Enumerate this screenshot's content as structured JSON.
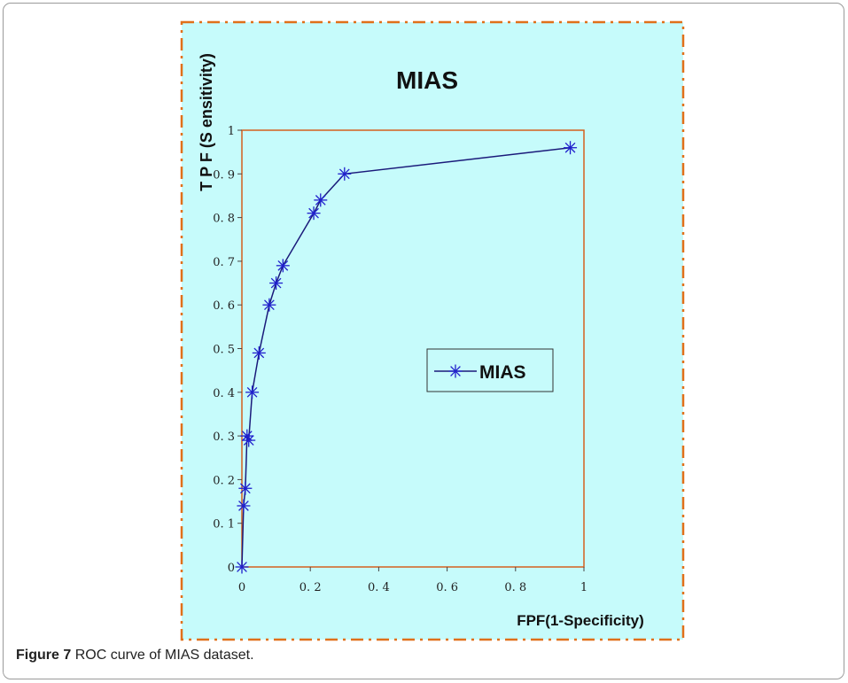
{
  "figure": {
    "label": "Figure 7",
    "caption": "ROC curve of MIAS dataset."
  },
  "colors": {
    "panel_background": "#c6fbfb",
    "panel_border": "#e0701a",
    "axes_frame": "#d3601e",
    "series_line": "#1a1a7a",
    "marker": "#2020cc"
  },
  "chart_data": {
    "type": "line",
    "title": "MIAS",
    "xlabel": "FPF(1-Specificity)",
    "ylabel": "T P F (S ensitivity)",
    "xlim": [
      0,
      1
    ],
    "ylim": [
      0,
      1
    ],
    "x_ticks": [
      0,
      0.2,
      0.4,
      0.6,
      0.8,
      1
    ],
    "x_tick_labels": [
      "0",
      "0. 2",
      "0. 4",
      "0. 6",
      "0. 8",
      "1"
    ],
    "y_ticks": [
      0,
      0.1,
      0.2,
      0.3,
      0.4,
      0.5,
      0.6,
      0.7,
      0.8,
      0.9,
      1
    ],
    "y_tick_labels": [
      "0",
      "0. 1",
      "0. 2",
      "0. 3",
      "0. 4",
      "0. 5",
      "0. 6",
      "0. 7",
      "0. 8",
      "0. 9",
      "1"
    ],
    "grid": false,
    "legend_position": "right-middle",
    "marker": "asterisk",
    "series": [
      {
        "name": "MIAS",
        "x": [
          0,
          0.005,
          0.01,
          0.015,
          0.02,
          0.03,
          0.05,
          0.08,
          0.1,
          0.12,
          0.21,
          0.23,
          0.3,
          0.96
        ],
        "y": [
          0,
          0.14,
          0.18,
          0.3,
          0.29,
          0.4,
          0.49,
          0.6,
          0.65,
          0.69,
          0.81,
          0.84,
          0.9,
          0.96
        ]
      }
    ]
  }
}
